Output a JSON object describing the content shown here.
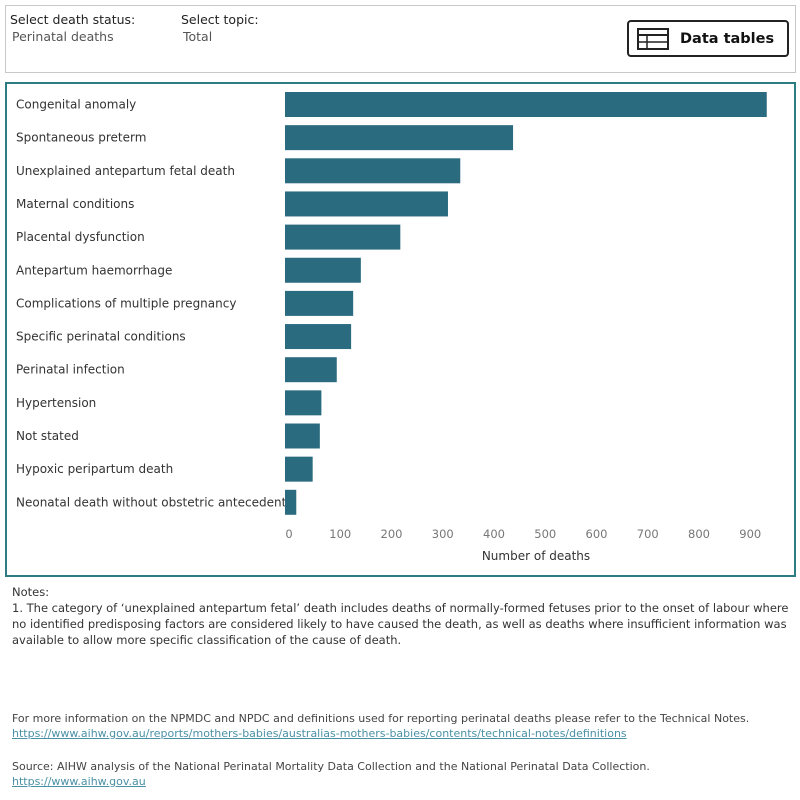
{
  "filters": {
    "death_status_label": "Select death status:",
    "death_status_value": "Perinatal deaths",
    "topic_label": "Select topic:",
    "topic_value": "Total"
  },
  "data_tables_button": {
    "label": "Data tables",
    "icon": "table-icon"
  },
  "chart_data": {
    "type": "bar",
    "orientation": "horizontal",
    "categories": [
      "Congenital anomaly",
      "Spontaneous preterm",
      "Unexplained antepartum fetal death",
      "Maternal conditions",
      "Placental dysfunction",
      "Antepartum haemorrhage",
      "Complications of multiple pregnancy",
      "Specific perinatal conditions",
      "Perinatal infection",
      "Hypertension",
      "Not stated",
      "Hypoxic peripartum death",
      "Neonatal death without obstetric antecedent"
    ],
    "values": [
      940,
      445,
      342,
      318,
      225,
      148,
      133,
      129,
      101,
      71,
      68,
      54,
      22
    ],
    "xlabel": "Number of deaths",
    "ylabel": "",
    "xlim": [
      0,
      950
    ],
    "xticks": [
      0,
      100,
      200,
      300,
      400,
      500,
      600,
      700,
      800,
      900
    ],
    "bar_color": "#2b6b80",
    "grid": false
  },
  "notes": {
    "heading": "Notes:",
    "items": [
      "1. The category of ‘unexplained antepartum fetal’ death includes deaths of normally-formed fetuses prior to the onset of labour where no identified predisposing factors are considered likely to have caused the death, as well as deaths where insufficient information was available to allow more specific classification of the cause of death."
    ]
  },
  "footer": {
    "info_text": "For more information on the NPMDC and NPDC and definitions used for reporting perinatal deaths please refer to the Technical Notes.",
    "info_link": "https://www.aihw.gov.au/reports/mothers-babies/australias-mothers-babies/contents/technical-notes/definitions",
    "source_text": "Source: AIHW analysis of the National Perinatal Mortality Data Collection and the National Perinatal Data Collection.",
    "source_link": "https://www.aihw.gov.au"
  },
  "colors": {
    "panel_border": "#2d7c82",
    "bar": "#2b6b80",
    "link": "#4a90a4"
  }
}
